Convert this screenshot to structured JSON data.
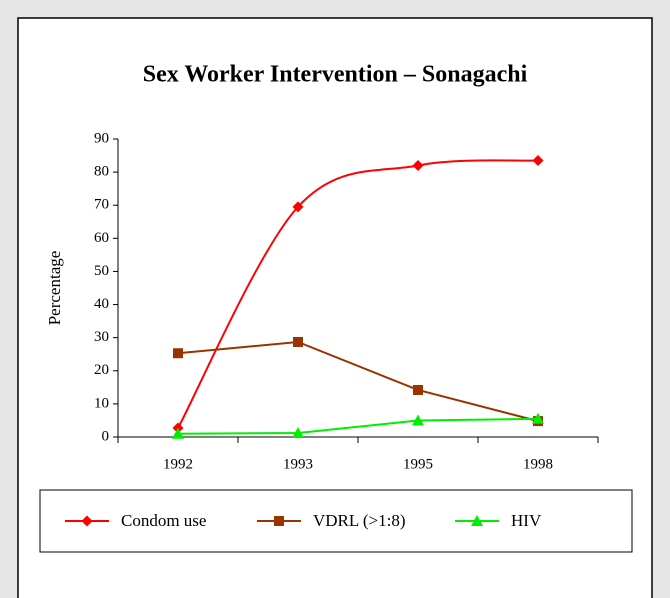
{
  "chart_data": {
    "type": "line",
    "title": "Sex Worker Intervention – Sonagachi",
    "y_label": "Percentage",
    "categories": [
      "1992",
      "1993",
      "1995",
      "1998"
    ],
    "series": [
      {
        "name": "Condom use",
        "color": "#ff0000",
        "marker": "diamond",
        "smooth": true,
        "values": [
          2.7,
          69.5,
          82,
          83.5
        ]
      },
      {
        "name": "VDRL (>1:8)",
        "color": "#993300",
        "marker": "square",
        "smooth": false,
        "values": [
          25.3,
          28.7,
          14.2,
          4.8
        ]
      },
      {
        "name": "HIV",
        "color": "#00ee00",
        "marker": "triangle",
        "smooth": false,
        "values": [
          1,
          1.2,
          5,
          5.5
        ]
      }
    ],
    "ylim": [
      0,
      90
    ],
    "yticks": [
      0,
      10,
      20,
      30,
      40,
      50,
      60,
      70,
      80,
      90
    ],
    "grid": false,
    "legend": "bottom"
  }
}
